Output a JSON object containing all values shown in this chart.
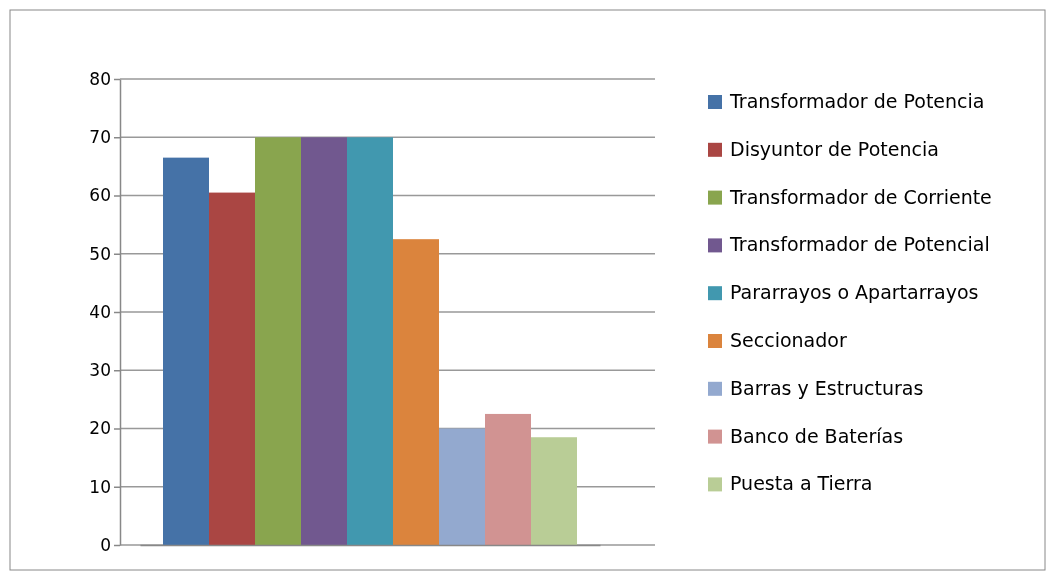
{
  "chart_data": {
    "type": "bar",
    "categories": [
      null
    ],
    "ylim": [
      0,
      80
    ],
    "yticks": [
      0,
      10,
      20,
      30,
      40,
      50,
      60,
      70,
      80
    ],
    "grid": "y",
    "legend": "right",
    "series": [
      {
        "name": "Transformador de Potencia",
        "color": "#4572a7",
        "values": [
          66.5
        ]
      },
      {
        "name": "Disyuntor de Potencia",
        "color": "#aa4643",
        "values": [
          60.5
        ]
      },
      {
        "name": "Transformador de Corriente",
        "color": "#89a54e",
        "values": [
          70
        ]
      },
      {
        "name": "Transformador de Potencial",
        "color": "#71588f",
        "values": [
          70
        ]
      },
      {
        "name": "Pararrayos o Apartarrayos",
        "color": "#4198af",
        "values": [
          70
        ]
      },
      {
        "name": "Seccionador",
        "color": "#db843d",
        "values": [
          52.5
        ]
      },
      {
        "name": "Barras y Estructuras",
        "color": "#93a9cf",
        "values": [
          20
        ]
      },
      {
        "name": "Banco de Baterías",
        "color": "#d19392",
        "values": [
          22.5
        ]
      },
      {
        "name": "Puesta a Tierra",
        "color": "#b9cd96",
        "values": [
          18.5
        ]
      }
    ]
  }
}
